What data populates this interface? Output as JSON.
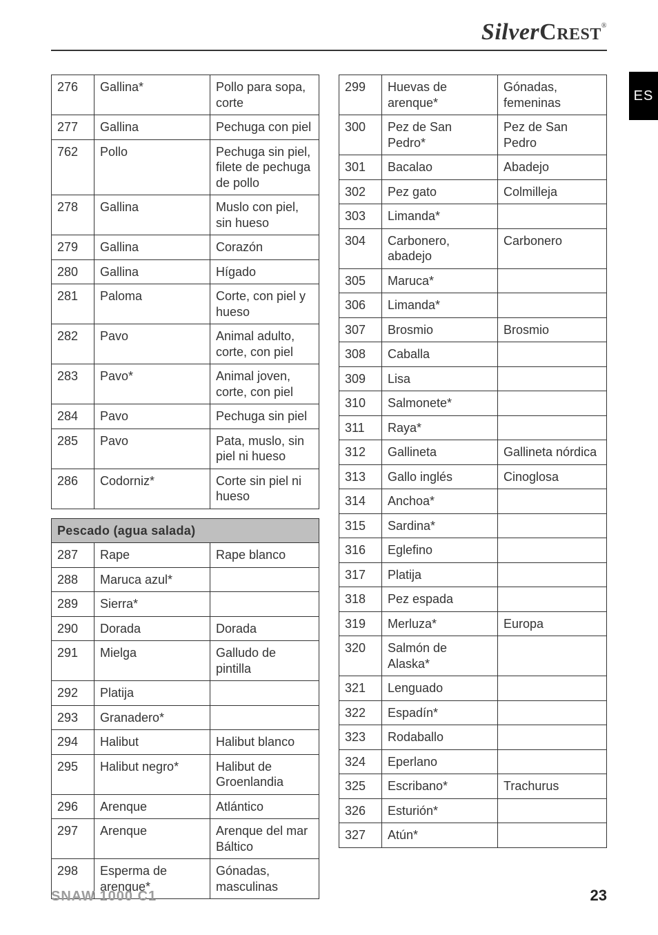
{
  "brand": {
    "part1": "Silver",
    "part2": "Crest",
    "reg": "®"
  },
  "sideTag": "ES",
  "footer": {
    "model": "SNAW 1000 C1",
    "page": "23"
  },
  "section_fish": "Pescado (agua salada)",
  "leftGroups": [
    {
      "type": "rows",
      "rows": [
        {
          "n": "276",
          "a": "Gallina*",
          "b": "Pollo para sopa, corte"
        },
        {
          "n": "277",
          "a": "Gallina",
          "b": "Pechuga con piel"
        },
        {
          "n": "762",
          "a": "Pollo",
          "b": "Pechuga sin piel, filete de pechuga de pollo"
        },
        {
          "n": "278",
          "a": "Gallina",
          "b": "Muslo con piel, sin hueso"
        },
        {
          "n": "279",
          "a": "Gallina",
          "b": "Corazón"
        },
        {
          "n": "280",
          "a": "Gallina",
          "b": "Hígado"
        },
        {
          "n": "281",
          "a": "Paloma",
          "b": "Corte, con piel y hueso"
        },
        {
          "n": "282",
          "a": "Pavo",
          "b": "Animal adulto, corte, con piel"
        },
        {
          "n": "283",
          "a": "Pavo*",
          "b": "Animal joven, corte, con piel"
        },
        {
          "n": "284",
          "a": "Pavo",
          "b": "Pechuga sin piel"
        },
        {
          "n": "285",
          "a": "Pavo",
          "b": "Pata, muslo, sin piel ni hueso"
        },
        {
          "n": "286",
          "a": "Codorniz*",
          "b": "Corte sin piel ni hueso"
        }
      ]
    },
    {
      "type": "spacer"
    },
    {
      "type": "section",
      "key": "section_fish"
    },
    {
      "type": "rows",
      "rows": [
        {
          "n": "287",
          "a": "Rape",
          "b": "Rape blanco"
        },
        {
          "n": "288",
          "a": "Maruca azul*",
          "b": ""
        },
        {
          "n": "289",
          "a": "Sierra*",
          "b": ""
        },
        {
          "n": "290",
          "a": "Dorada",
          "b": "Dorada"
        },
        {
          "n": "291",
          "a": "Mielga",
          "b": "Galludo de pintilla"
        },
        {
          "n": "292",
          "a": "Platija",
          "b": ""
        },
        {
          "n": "293",
          "a": "Granadero*",
          "b": ""
        },
        {
          "n": "294",
          "a": "Halibut",
          "b": "Halibut blanco"
        },
        {
          "n": "295",
          "a": "Halibut negro*",
          "b": "Halibut de Groenlandia"
        },
        {
          "n": "296",
          "a": "Arenque",
          "b": "Atlántico"
        },
        {
          "n": "297",
          "a": "Arenque",
          "b": "Arenque del mar Báltico"
        },
        {
          "n": "298",
          "a": "Esperma de arenque*",
          "b": "Gónadas, masculinas"
        }
      ]
    }
  ],
  "rightRows": [
    {
      "n": "299",
      "a": "Huevas de arenque*",
      "b": "Gónadas, femeninas"
    },
    {
      "n": "300",
      "a": "Pez de San Pedro*",
      "b": "Pez de San Pedro"
    },
    {
      "n": "301",
      "a": "Bacalao",
      "b": "Abadejo"
    },
    {
      "n": "302",
      "a": "Pez gato",
      "b": "Colmilleja"
    },
    {
      "n": "303",
      "a": "Limanda*",
      "b": ""
    },
    {
      "n": "304",
      "a": "Carbonero, abadejo",
      "b": "Carbonero"
    },
    {
      "n": "305",
      "a": "Maruca*",
      "b": ""
    },
    {
      "n": "306",
      "a": "Limanda*",
      "b": ""
    },
    {
      "n": "307",
      "a": "Brosmio",
      "b": "Brosmio"
    },
    {
      "n": "308",
      "a": "Caballa",
      "b": ""
    },
    {
      "n": "309",
      "a": "Lisa",
      "b": ""
    },
    {
      "n": "310",
      "a": "Salmonete*",
      "b": ""
    },
    {
      "n": "311",
      "a": "Raya*",
      "b": ""
    },
    {
      "n": "312",
      "a": "Gallineta",
      "b": "Gallineta nórdica"
    },
    {
      "n": "313",
      "a": "Gallo inglés",
      "b": "Cinoglosa"
    },
    {
      "n": "314",
      "a": "Anchoa*",
      "b": ""
    },
    {
      "n": "315",
      "a": "Sardina*",
      "b": ""
    },
    {
      "n": "316",
      "a": "Eglefino",
      "b": ""
    },
    {
      "n": "317",
      "a": "Platija",
      "b": ""
    },
    {
      "n": "318",
      "a": "Pez espada",
      "b": ""
    },
    {
      "n": "319",
      "a": "Merluza*",
      "b": "Europa"
    },
    {
      "n": "320",
      "a": "Salmón de Alaska*",
      "b": ""
    },
    {
      "n": "321",
      "a": "Lenguado",
      "b": ""
    },
    {
      "n": "322",
      "a": "Espadín*",
      "b": ""
    },
    {
      "n": "323",
      "a": "Rodaballo",
      "b": ""
    },
    {
      "n": "324",
      "a": "Eperlano",
      "b": ""
    },
    {
      "n": "325",
      "a": "Escribano*",
      "b": "Trachurus"
    },
    {
      "n": "326",
      "a": "Esturión*",
      "b": ""
    },
    {
      "n": "327",
      "a": "Atún*",
      "b": ""
    }
  ]
}
